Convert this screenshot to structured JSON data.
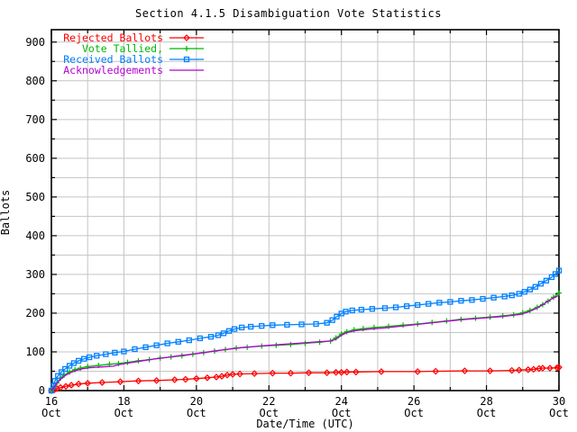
{
  "title": "Section 4.1.5 Disambiguation Vote Statistics",
  "axes": {
    "y_label": "Ballots",
    "x_label": "Date/Time (UTC)",
    "y_ticks": [
      0,
      100,
      200,
      300,
      400,
      500,
      600,
      700,
      800,
      900
    ],
    "x_ticks": [
      {
        "day": 16,
        "top": "16",
        "bottom": "Oct"
      },
      {
        "day": 18,
        "top": "18",
        "bottom": "Oct"
      },
      {
        "day": 20,
        "top": "20",
        "bottom": "Oct"
      },
      {
        "day": 22,
        "top": "22",
        "bottom": "Oct"
      },
      {
        "day": 24,
        "top": "24",
        "bottom": "Oct"
      },
      {
        "day": 26,
        "top": "26",
        "bottom": "Oct"
      },
      {
        "day": 28,
        "top": "28",
        "bottom": "Oct"
      },
      {
        "day": 30,
        "top": "30",
        "bottom": "Oct"
      }
    ]
  },
  "colors": {
    "grid": "#c4c4c4",
    "border": "#000000",
    "rejected": "#ff0000",
    "tallied": "#00b800",
    "received": "#0080ff",
    "acknowledgements": "#b400d3"
  },
  "legend": [
    {
      "label": "Rejected Ballots",
      "series": "rejected"
    },
    {
      "label": "Vote Tallied,",
      "series": "tallied"
    },
    {
      "label": "Received Ballots",
      "series": "received"
    },
    {
      "label": "Acknowledgements",
      "series": "acknowledgements"
    }
  ],
  "chart_data": {
    "type": "line",
    "title": "Section 4.1.5 Disambiguation Vote Statistics",
    "xlabel": "Date/Time (UTC)",
    "ylabel": "Ballots",
    "x_unit": "day of October (UTC)",
    "xlim": [
      16,
      30
    ],
    "ylim": [
      0,
      932
    ],
    "y_tick_step": 100,
    "y_grid_step": 50,
    "x_grid_step_days": 1,
    "x_label_step_days": 2,
    "grid": true,
    "legend_position": "top-left-inside",
    "series": [
      {
        "id": "rejected",
        "name": "Rejected Ballots",
        "color": "#ff0000",
        "marker": "diamond",
        "points": [
          [
            16.0,
            0
          ],
          [
            16.08,
            2
          ],
          [
            16.15,
            5
          ],
          [
            16.25,
            8
          ],
          [
            16.4,
            11
          ],
          [
            16.55,
            14
          ],
          [
            16.75,
            17
          ],
          [
            17.0,
            19
          ],
          [
            17.4,
            21
          ],
          [
            17.9,
            23
          ],
          [
            18.4,
            25
          ],
          [
            18.9,
            26
          ],
          [
            19.4,
            28
          ],
          [
            19.7,
            29
          ],
          [
            20.0,
            31
          ],
          [
            20.3,
            33
          ],
          [
            20.55,
            35
          ],
          [
            20.7,
            37
          ],
          [
            20.85,
            40
          ],
          [
            21.0,
            42
          ],
          [
            21.2,
            43
          ],
          [
            21.6,
            44
          ],
          [
            22.1,
            45
          ],
          [
            22.6,
            45
          ],
          [
            23.1,
            46
          ],
          [
            23.6,
            46
          ],
          [
            23.85,
            47
          ],
          [
            24.0,
            47
          ],
          [
            24.15,
            48
          ],
          [
            24.4,
            48
          ],
          [
            25.1,
            49
          ],
          [
            26.1,
            49
          ],
          [
            26.6,
            50
          ],
          [
            27.4,
            51
          ],
          [
            28.1,
            51
          ],
          [
            28.7,
            52
          ],
          [
            28.9,
            53
          ],
          [
            29.15,
            54
          ],
          [
            29.3,
            55
          ],
          [
            29.45,
            57
          ],
          [
            29.55,
            58
          ],
          [
            29.75,
            58
          ],
          [
            29.95,
            59
          ],
          [
            30.0,
            60
          ]
        ]
      },
      {
        "id": "tallied",
        "name": "Vote Tallied,",
        "color": "#00b800",
        "marker": "plus",
        "points": [
          [
            16.0,
            0
          ],
          [
            16.07,
            8
          ],
          [
            16.15,
            20
          ],
          [
            16.25,
            32
          ],
          [
            16.35,
            40
          ],
          [
            16.5,
            48
          ],
          [
            16.65,
            54
          ],
          [
            16.8,
            58
          ],
          [
            17.0,
            62
          ],
          [
            17.3,
            65
          ],
          [
            17.6,
            68
          ],
          [
            17.85,
            70
          ],
          [
            18.1,
            73
          ],
          [
            18.4,
            77
          ],
          [
            18.7,
            80
          ],
          [
            19.0,
            84
          ],
          [
            19.3,
            87
          ],
          [
            19.6,
            90
          ],
          [
            19.9,
            94
          ],
          [
            20.2,
            98
          ],
          [
            20.5,
            102
          ],
          [
            20.8,
            106
          ],
          [
            21.1,
            110
          ],
          [
            21.4,
            112
          ],
          [
            21.8,
            115
          ],
          [
            22.2,
            117
          ],
          [
            22.6,
            119
          ],
          [
            23.0,
            122
          ],
          [
            23.4,
            125
          ],
          [
            23.7,
            128
          ],
          [
            23.85,
            136
          ],
          [
            24.0,
            146
          ],
          [
            24.15,
            152
          ],
          [
            24.35,
            157
          ],
          [
            24.6,
            160
          ],
          [
            24.9,
            163
          ],
          [
            25.3,
            166
          ],
          [
            25.7,
            169
          ],
          [
            26.1,
            172
          ],
          [
            26.5,
            176
          ],
          [
            26.9,
            180
          ],
          [
            27.3,
            184
          ],
          [
            27.7,
            187
          ],
          [
            28.1,
            190
          ],
          [
            28.45,
            193
          ],
          [
            28.75,
            196
          ],
          [
            29.0,
            201
          ],
          [
            29.2,
            207
          ],
          [
            29.4,
            215
          ],
          [
            29.55,
            222
          ],
          [
            29.7,
            231
          ],
          [
            29.85,
            241
          ],
          [
            30.0,
            252
          ]
        ]
      },
      {
        "id": "received",
        "name": "Received Ballots",
        "color": "#0080ff",
        "marker": "square",
        "points": [
          [
            16.0,
            0
          ],
          [
            16.05,
            12
          ],
          [
            16.1,
            25
          ],
          [
            16.18,
            38
          ],
          [
            16.28,
            48
          ],
          [
            16.38,
            56
          ],
          [
            16.5,
            64
          ],
          [
            16.62,
            71
          ],
          [
            16.75,
            77
          ],
          [
            16.9,
            82
          ],
          [
            17.05,
            86
          ],
          [
            17.25,
            90
          ],
          [
            17.5,
            94
          ],
          [
            17.75,
            98
          ],
          [
            18.0,
            101
          ],
          [
            18.3,
            107
          ],
          [
            18.6,
            112
          ],
          [
            18.9,
            117
          ],
          [
            19.2,
            122
          ],
          [
            19.5,
            126
          ],
          [
            19.8,
            130
          ],
          [
            20.1,
            135
          ],
          [
            20.4,
            139
          ],
          [
            20.6,
            143
          ],
          [
            20.75,
            148
          ],
          [
            20.9,
            154
          ],
          [
            21.05,
            159
          ],
          [
            21.25,
            163
          ],
          [
            21.5,
            165
          ],
          [
            21.8,
            167
          ],
          [
            22.1,
            169
          ],
          [
            22.5,
            170
          ],
          [
            22.9,
            171
          ],
          [
            23.3,
            172
          ],
          [
            23.6,
            175
          ],
          [
            23.75,
            182
          ],
          [
            23.87,
            191
          ],
          [
            24.0,
            199
          ],
          [
            24.12,
            204
          ],
          [
            24.3,
            207
          ],
          [
            24.55,
            209
          ],
          [
            24.85,
            211
          ],
          [
            25.2,
            213
          ],
          [
            25.5,
            215
          ],
          [
            25.8,
            218
          ],
          [
            26.1,
            221
          ],
          [
            26.4,
            224
          ],
          [
            26.7,
            227
          ],
          [
            27.0,
            229
          ],
          [
            27.3,
            232
          ],
          [
            27.6,
            234
          ],
          [
            27.9,
            237
          ],
          [
            28.2,
            240
          ],
          [
            28.5,
            243
          ],
          [
            28.7,
            246
          ],
          [
            28.9,
            250
          ],
          [
            29.05,
            255
          ],
          [
            29.2,
            261
          ],
          [
            29.35,
            268
          ],
          [
            29.5,
            276
          ],
          [
            29.65,
            284
          ],
          [
            29.8,
            293
          ],
          [
            29.9,
            301
          ],
          [
            30.0,
            310
          ]
        ]
      },
      {
        "id": "acknowledgements",
        "name": "Acknowledgements",
        "color": "#b400d3",
        "marker": "none",
        "points": [
          [
            16.0,
            0
          ],
          [
            16.08,
            10
          ],
          [
            16.16,
            20
          ],
          [
            16.26,
            30
          ],
          [
            16.38,
            39
          ],
          [
            16.52,
            46
          ],
          [
            16.68,
            52
          ],
          [
            16.85,
            56
          ],
          [
            17.05,
            59
          ],
          [
            17.35,
            61
          ],
          [
            17.7,
            63
          ],
          [
            17.85,
            67
          ],
          [
            18.1,
            71
          ],
          [
            18.45,
            76
          ],
          [
            18.8,
            81
          ],
          [
            19.15,
            85
          ],
          [
            19.5,
            90
          ],
          [
            19.85,
            94
          ],
          [
            20.2,
            98
          ],
          [
            20.55,
            103
          ],
          [
            20.9,
            107
          ],
          [
            21.25,
            111
          ],
          [
            21.6,
            114
          ],
          [
            22.0,
            117
          ],
          [
            22.45,
            120
          ],
          [
            22.9,
            123
          ],
          [
            23.35,
            126
          ],
          [
            23.7,
            128
          ],
          [
            23.85,
            133
          ],
          [
            24.0,
            143
          ],
          [
            24.15,
            150
          ],
          [
            24.4,
            155
          ],
          [
            24.8,
            159
          ],
          [
            25.2,
            162
          ],
          [
            25.6,
            166
          ],
          [
            26.0,
            170
          ],
          [
            26.4,
            174
          ],
          [
            26.8,
            178
          ],
          [
            27.2,
            182
          ],
          [
            27.6,
            185
          ],
          [
            28.0,
            188
          ],
          [
            28.4,
            191
          ],
          [
            28.7,
            194
          ],
          [
            28.95,
            197
          ],
          [
            29.15,
            203
          ],
          [
            29.35,
            211
          ],
          [
            29.5,
            219
          ],
          [
            29.65,
            228
          ],
          [
            29.8,
            237
          ],
          [
            30.0,
            246
          ]
        ]
      }
    ]
  }
}
